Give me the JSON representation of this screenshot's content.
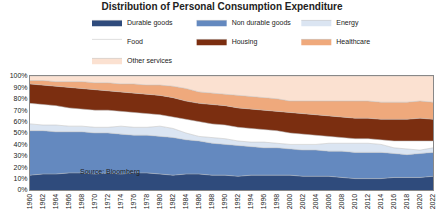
{
  "chart_data": {
    "type": "area",
    "title": "Distribution of Personal Consumption Expenditure",
    "stacked": true,
    "legend": "top",
    "grid": false,
    "annotations": [
      "Source: Bloomberg"
    ],
    "x": [
      1960,
      1962,
      1964,
      1966,
      1968,
      1970,
      1972,
      1974,
      1976,
      1978,
      1980,
      1982,
      1984,
      1986,
      1988,
      1990,
      1992,
      1994,
      1996,
      1998,
      2000,
      2002,
      2004,
      2006,
      2008,
      2010,
      2012,
      2014,
      2016,
      2018,
      2020,
      2022
    ],
    "xlim": [
      1960,
      2022
    ],
    "xticks": [
      1960,
      1962,
      1964,
      1966,
      1968,
      1970,
      1972,
      1974,
      1976,
      1978,
      1980,
      1982,
      1984,
      1986,
      1988,
      1990,
      1992,
      1994,
      1996,
      1998,
      2000,
      2002,
      2004,
      2006,
      2008,
      2010,
      2012,
      2014,
      2016,
      2018,
      2020,
      2022
    ],
    "ylim": [
      0,
      100
    ],
    "yticks": [
      {
        "value": 0,
        "label": "0%"
      },
      {
        "value": 10,
        "label": "10%"
      },
      {
        "value": 20,
        "label": "20%"
      },
      {
        "value": 30,
        "label": "30%"
      },
      {
        "value": 40,
        "label": "40%"
      },
      {
        "value": 50,
        "label": "50%"
      },
      {
        "value": 60,
        "label": "60%"
      },
      {
        "value": 70,
        "label": "70%"
      },
      {
        "value": 80,
        "label": "80%"
      },
      {
        "value": 90,
        "label": "90%"
      },
      {
        "value": 100,
        "label": "100%"
      }
    ],
    "series": [
      {
        "name": "Durable goods",
        "color": "#2f4b7c",
        "values": [
          13,
          14,
          14,
          15,
          15,
          14,
          15,
          14,
          15,
          15,
          14,
          13,
          14,
          14,
          13,
          13,
          12,
          13,
          13,
          13,
          13,
          12,
          12,
          12,
          11,
          10,
          10,
          10,
          11,
          11,
          11,
          12
        ]
      },
      {
        "name": "Non durable goods",
        "color": "#6489bf",
        "values": [
          39,
          38,
          37,
          36,
          36,
          36,
          35,
          35,
          33,
          33,
          33,
          33,
          30,
          29,
          28,
          27,
          27,
          25,
          24,
          24,
          23,
          23,
          23,
          22,
          23,
          23,
          23,
          23,
          21,
          20,
          21,
          21
        ]
      },
      {
        "name": "Energy",
        "color": "#dbe5f2",
        "values": [
          6,
          5,
          6,
          5,
          5,
          5,
          5,
          7,
          7,
          7,
          9,
          8,
          6,
          4,
          5,
          5,
          4,
          4,
          5,
          4,
          4,
          5,
          5,
          7,
          7,
          8,
          8,
          7,
          5,
          5,
          3,
          4
        ]
      },
      {
        "name": "Food",
        "color": "#ffffff",
        "values": [
          18,
          18,
          17,
          16,
          15,
          15,
          15,
          13,
          13,
          12,
          10,
          10,
          12,
          13,
          12,
          12,
          12,
          12,
          11,
          11,
          10,
          9,
          8,
          6,
          5,
          4,
          4,
          4,
          6,
          7,
          8,
          6
        ]
      },
      {
        "name": "Housing",
        "color": "#7b2e10",
        "values": [
          17,
          17,
          17,
          18,
          18,
          18,
          17,
          17,
          17,
          17,
          17,
          17,
          16,
          16,
          17,
          17,
          17,
          17,
          17,
          17,
          18,
          18,
          18,
          18,
          18,
          18,
          18,
          18,
          19,
          19,
          20,
          19
        ]
      },
      {
        "name": "Healthcare",
        "color": "#efa97c",
        "values": [
          3,
          4,
          4,
          5,
          6,
          6,
          7,
          7,
          8,
          8,
          9,
          10,
          11,
          10,
          10,
          10,
          11,
          11,
          11,
          11,
          10,
          11,
          12,
          13,
          14,
          15,
          15,
          15,
          15,
          15,
          15,
          15
        ]
      },
      {
        "name": "Other services",
        "color": "#fbe1d1",
        "values": [
          4,
          4,
          5,
          5,
          5,
          6,
          6,
          7,
          7,
          8,
          8,
          9,
          11,
          14,
          15,
          16,
          17,
          18,
          19,
          20,
          22,
          22,
          22,
          22,
          22,
          22,
          22,
          23,
          23,
          23,
          22,
          23
        ]
      }
    ]
  }
}
